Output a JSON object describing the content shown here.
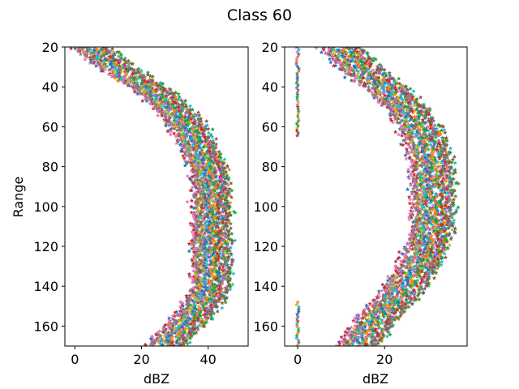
{
  "figure": {
    "title": "Class 60"
  },
  "palette": [
    "#1f77b4",
    "#ff7f0e",
    "#2ca02c",
    "#d62728",
    "#9467bd",
    "#8c564b",
    "#e377c2",
    "#7f7f7f",
    "#bcbd22",
    "#17becf"
  ],
  "chart_data": [
    {
      "type": "scatter",
      "marker": "star",
      "xlabel": "dBZ",
      "ylabel": "Range",
      "xlim": [
        -3,
        52
      ],
      "ylim": [
        170,
        20
      ],
      "y_inverted": true,
      "xticks": [
        0,
        20,
        40
      ],
      "yticks": [
        20,
        40,
        60,
        80,
        100,
        120,
        140,
        160
      ],
      "grid": false,
      "n_series": 10,
      "profile_center": [
        {
          "range": 20,
          "dbz": 5
        },
        {
          "range": 30,
          "dbz": 12
        },
        {
          "range": 40,
          "dbz": 22
        },
        {
          "range": 50,
          "dbz": 29
        },
        {
          "range": 60,
          "dbz": 34
        },
        {
          "range": 70,
          "dbz": 37
        },
        {
          "range": 80,
          "dbz": 40
        },
        {
          "range": 90,
          "dbz": 41
        },
        {
          "range": 100,
          "dbz": 41
        },
        {
          "range": 110,
          "dbz": 41
        },
        {
          "range": 120,
          "dbz": 41
        },
        {
          "range": 130,
          "dbz": 41
        },
        {
          "range": 140,
          "dbz": 41
        },
        {
          "range": 150,
          "dbz": 38
        },
        {
          "range": 160,
          "dbz": 33
        },
        {
          "range": 170,
          "dbz": 27
        }
      ],
      "spread_dbz": 7
    },
    {
      "type": "scatter",
      "marker": "star",
      "xlabel": "dBZ",
      "ylabel": "",
      "xlim": [
        -3,
        39
      ],
      "ylim": [
        170,
        20
      ],
      "y_inverted": true,
      "xticks": [
        0,
        20
      ],
      "yticks": [
        20,
        40,
        60,
        80,
        100,
        120,
        140,
        160
      ],
      "grid": false,
      "n_series": 10,
      "profile_center": [
        {
          "range": 20,
          "dbz": 10
        },
        {
          "range": 30,
          "dbz": 14
        },
        {
          "range": 40,
          "dbz": 20
        },
        {
          "range": 50,
          "dbz": 25
        },
        {
          "range": 60,
          "dbz": 28
        },
        {
          "range": 70,
          "dbz": 30
        },
        {
          "range": 80,
          "dbz": 31
        },
        {
          "range": 90,
          "dbz": 31
        },
        {
          "range": 100,
          "dbz": 31
        },
        {
          "range": 110,
          "dbz": 31
        },
        {
          "range": 120,
          "dbz": 30
        },
        {
          "range": 130,
          "dbz": 28
        },
        {
          "range": 140,
          "dbz": 25
        },
        {
          "range": 150,
          "dbz": 21
        },
        {
          "range": 160,
          "dbz": 17
        },
        {
          "range": 170,
          "dbz": 14
        }
      ],
      "spread_dbz": 6,
      "zero_column": {
        "dbz": 0,
        "ranges": [
          [
            20,
            65
          ],
          [
            148,
            170
          ]
        ]
      }
    }
  ]
}
